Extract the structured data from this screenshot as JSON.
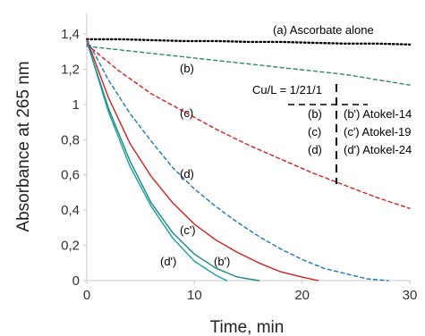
{
  "chart_data": {
    "type": "line",
    "title": "",
    "xlabel": "Time, min",
    "ylabel": "Absorbance at 265 nm",
    "xlim": [
      0,
      30
    ],
    "ylim": [
      0,
      1.4
    ],
    "x_ticks": [
      "0",
      "10",
      "20",
      "30"
    ],
    "y_ticks": [
      "0",
      "0,2",
      "0,4",
      "0,6",
      "0,8",
      "1",
      "1,2",
      "1,4"
    ],
    "grid": false,
    "series": [
      {
        "label": "(a) Ascorbate alone",
        "style": "dotted",
        "color": "#000000",
        "x": [
          0,
          3,
          6,
          9,
          12,
          15,
          18,
          21,
          24,
          27,
          30
        ],
        "y": [
          1.37,
          1.37,
          1.365,
          1.36,
          1.36,
          1.355,
          1.355,
          1.35,
          1.345,
          1.345,
          1.34
        ]
      },
      {
        "label": "(b)",
        "style": "dashed",
        "color": "#2e8b57",
        "x": [
          0,
          3,
          6,
          9,
          12,
          15,
          18,
          21,
          24,
          27,
          30
        ],
        "y": [
          1.33,
          1.31,
          1.29,
          1.27,
          1.25,
          1.23,
          1.21,
          1.19,
          1.17,
          1.14,
          1.11
        ]
      },
      {
        "label": "(c)",
        "style": "dashed",
        "color": "#d42020",
        "x": [
          0,
          3,
          6,
          9,
          12,
          15,
          18,
          21,
          24,
          27,
          30
        ],
        "y": [
          1.34,
          1.19,
          1.06,
          0.96,
          0.86,
          0.77,
          0.69,
          0.61,
          0.54,
          0.47,
          0.41
        ]
      },
      {
        "label": "(d)",
        "style": "dashed",
        "color": "#1f77b4",
        "x": [
          0,
          2,
          4,
          6,
          8,
          10,
          12,
          14,
          16,
          18,
          20,
          22,
          24,
          26,
          28
        ],
        "y": [
          1.37,
          1.14,
          0.95,
          0.79,
          0.64,
          0.52,
          0.42,
          0.33,
          0.25,
          0.18,
          0.12,
          0.07,
          0.04,
          0.01,
          0.0
        ]
      },
      {
        "label": "(c')",
        "style": "solid",
        "color": "#d42020",
        "x": [
          0,
          2,
          4,
          6,
          8,
          10,
          12,
          14,
          16,
          18,
          20,
          21.5
        ],
        "y": [
          1.37,
          1.04,
          0.78,
          0.59,
          0.44,
          0.32,
          0.23,
          0.16,
          0.1,
          0.05,
          0.02,
          0.0
        ]
      },
      {
        "label": "(b')",
        "style": "solid",
        "color": "#1a8a7a",
        "x": [
          0,
          2,
          4,
          6,
          8,
          10,
          12,
          14,
          16
        ],
        "y": [
          1.36,
          0.98,
          0.68,
          0.44,
          0.27,
          0.15,
          0.07,
          0.02,
          0.0
        ]
      },
      {
        "label": "(d')",
        "style": "solid",
        "color": "#17a0a0",
        "x": [
          0,
          2,
          4,
          6,
          8,
          10,
          12,
          13
        ],
        "y": [
          1.36,
          0.96,
          0.65,
          0.42,
          0.24,
          0.11,
          0.03,
          0.0
        ]
      }
    ],
    "annotation": {
      "title": "Cu/L = 1/21/1",
      "rows": [
        [
          "(b)",
          "(b') Atokel-14"
        ],
        [
          "(c)",
          "(c') Atokel-19"
        ],
        [
          "(d)",
          "(d') Atokel-24"
        ]
      ]
    }
  }
}
